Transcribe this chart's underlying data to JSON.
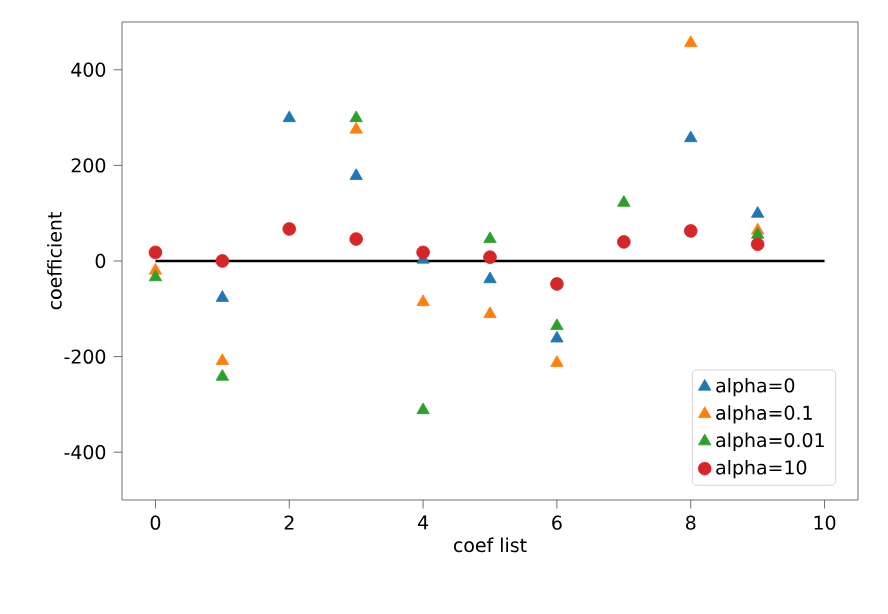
{
  "chart_data": {
    "type": "scatter",
    "xlabel": "coef list",
    "ylabel": "coefficient",
    "xlim": [
      -0.5,
      10.5
    ],
    "ylim": [
      -500,
      500
    ],
    "xticks": [
      0,
      2,
      4,
      6,
      8,
      10
    ],
    "yticks": [
      -400,
      -200,
      0,
      200,
      400
    ],
    "x": [
      0,
      1,
      2,
      3,
      4,
      5,
      6,
      7,
      8,
      9
    ],
    "legend": "bottom right",
    "grid": false,
    "series": [
      {
        "name": "alpha=0",
        "color": "#1f77b4",
        "marker": "triangle",
        "values": [
          null,
          -77,
          299,
          178,
          3,
          -38,
          -162,
          null,
          257,
          99
        ]
      },
      {
        "name": "alpha=0.1",
        "color": "#ff7f0e",
        "marker": "triangle",
        "values": [
          -20,
          -209,
          null,
          275,
          -86,
          -111,
          -213,
          null,
          456,
          64
        ]
      },
      {
        "name": "alpha=0.01",
        "color": "#2ca02c",
        "marker": "triangle",
        "values": [
          -34,
          -242,
          null,
          299,
          -312,
          46,
          -136,
          122,
          null,
          55
        ]
      },
      {
        "name": "alpha=10",
        "color": "#d62728",
        "marker": "circle",
        "values": [
          18,
          0,
          67,
          46,
          18,
          8,
          -48,
          40,
          63,
          35
        ]
      },
      {
        "type": "line",
        "color": "#000000",
        "marker": "none",
        "x": [
          0,
          10
        ],
        "values": [
          0,
          0
        ]
      }
    ]
  }
}
